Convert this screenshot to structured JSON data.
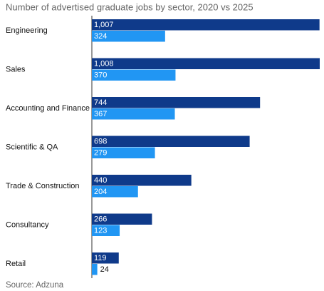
{
  "chart_data": {
    "type": "bar",
    "orientation": "horizontal",
    "title": "Number of advertised graduate jobs by sector, 2020 vs 2025",
    "source": "Source: Adzuna",
    "categories": [
      "Engineering",
      "Sales",
      "Accounting and Finance",
      "Scientific & QA",
      "Trade & Construction",
      "Consultancy",
      "Retail"
    ],
    "series": [
      {
        "color": "#0f3a8a",
        "values": [
          1007,
          1008,
          744,
          698,
          440,
          266,
          119
        ],
        "value_labels": [
          "1,007",
          "1,008",
          "744",
          "698",
          "440",
          "266",
          "119"
        ]
      },
      {
        "color": "#2196f3",
        "values": [
          324,
          370,
          367,
          279,
          204,
          123,
          24
        ],
        "value_labels": [
          "324",
          "370",
          "367",
          "279",
          "204",
          "123",
          "24"
        ]
      }
    ]
  }
}
